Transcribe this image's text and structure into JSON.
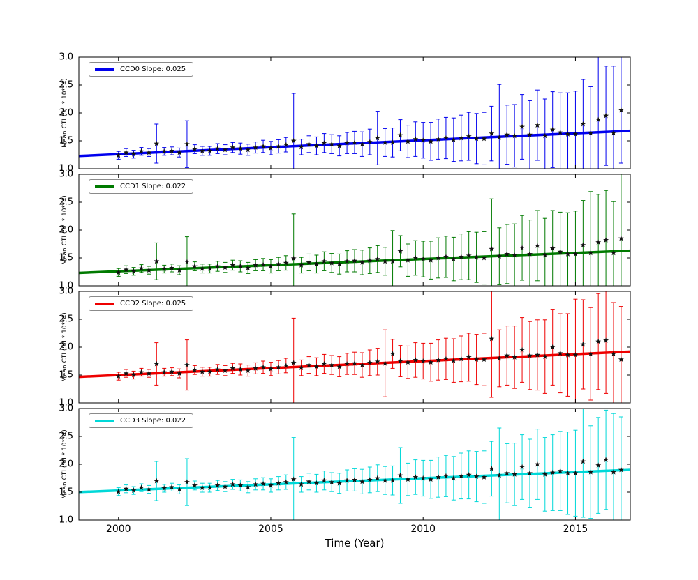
{
  "figure": {
    "xlabel": "Time (Year)",
    "ylabel": "Mean CTI (S/I * 10**4)",
    "x_ticks": [
      2000,
      2005,
      2010,
      2015
    ],
    "y_ticks": [
      3.0,
      2.5,
      2.0,
      1.5,
      1.0
    ],
    "xlim": [
      1998.7,
      2016.8
    ],
    "ylim": [
      1.0,
      3.0
    ],
    "background": "#ffffff"
  },
  "chart_data": {
    "type": "scatter",
    "subtype": "errorbar-with-linear-fit",
    "title": "",
    "xlabel": "Time (Year)",
    "ylabel": "Mean CTI (S/I * 10**4)",
    "xlim": [
      1998.7,
      2016.8
    ],
    "ylim": [
      1.0,
      3.0
    ],
    "legend_position": "upper-left-each-subplot",
    "grid": false,
    "marker": "star-black",
    "x": [
      2000.0,
      2000.25,
      2000.5,
      2000.75,
      2001.0,
      2001.25,
      2001.5,
      2001.75,
      2002.0,
      2002.25,
      2002.5,
      2002.75,
      2003.0,
      2003.25,
      2003.5,
      2003.75,
      2004.0,
      2004.25,
      2004.5,
      2004.75,
      2005.0,
      2005.25,
      2005.5,
      2005.75,
      2006.0,
      2006.25,
      2006.5,
      2006.75,
      2007.0,
      2007.25,
      2007.5,
      2007.75,
      2008.0,
      2008.25,
      2008.5,
      2008.75,
      2009.0,
      2009.25,
      2009.5,
      2009.75,
      2010.0,
      2010.25,
      2010.5,
      2010.75,
      2011.0,
      2011.25,
      2011.5,
      2011.75,
      2012.0,
      2012.25,
      2012.5,
      2012.75,
      2013.0,
      2013.25,
      2013.5,
      2013.75,
      2014.0,
      2014.25,
      2014.5,
      2014.75,
      2015.0,
      2015.25,
      2015.5,
      2015.75,
      2016.0,
      2016.25,
      2016.5
    ],
    "series": [
      {
        "name": "CCD0",
        "legend": "CCD0 Slope: 0.025",
        "color": "#0000ee",
        "slope": 0.025,
        "trend_intercept_2000": 1.26,
        "y": [
          1.24,
          1.29,
          1.26,
          1.31,
          1.29,
          1.45,
          1.31,
          1.32,
          1.29,
          1.44,
          1.35,
          1.32,
          1.32,
          1.36,
          1.34,
          1.38,
          1.36,
          1.34,
          1.38,
          1.4,
          1.37,
          1.4,
          1.43,
          1.5,
          1.39,
          1.44,
          1.41,
          1.46,
          1.44,
          1.41,
          1.46,
          1.47,
          1.44,
          1.48,
          1.55,
          1.47,
          1.47,
          1.6,
          1.49,
          1.53,
          1.51,
          1.49,
          1.53,
          1.55,
          1.52,
          1.55,
          1.58,
          1.54,
          1.54,
          1.63,
          1.56,
          1.61,
          1.59,
          1.75,
          1.61,
          1.78,
          1.59,
          1.7,
          1.65,
          1.62,
          1.62,
          1.8,
          1.64,
          1.88,
          1.95,
          1.64,
          2.05
        ],
        "yerr": [
          0.07,
          0.07,
          0.07,
          0.07,
          0.07,
          0.35,
          0.07,
          0.07,
          0.08,
          0.42,
          0.08,
          0.08,
          0.08,
          0.09,
          0.09,
          0.09,
          0.1,
          0.1,
          0.1,
          0.11,
          0.12,
          0.12,
          0.13,
          0.85,
          0.14,
          0.15,
          0.16,
          0.17,
          0.17,
          0.18,
          0.19,
          0.2,
          0.22,
          0.23,
          0.48,
          0.25,
          0.26,
          0.28,
          0.29,
          0.31,
          0.32,
          0.34,
          0.36,
          0.37,
          0.39,
          0.41,
          0.43,
          0.45,
          0.47,
          0.49,
          0.95,
          0.53,
          0.56,
          0.58,
          0.61,
          0.63,
          0.66,
          0.68,
          0.71,
          0.74,
          0.77,
          0.8,
          0.83,
          1.15,
          0.89,
          1.2,
          0.95
        ]
      },
      {
        "name": "CCD1",
        "legend": "CCD1 Slope: 0.022",
        "color": "#007a00",
        "slope": 0.022,
        "trend_intercept_2000": 1.26,
        "y": [
          1.24,
          1.29,
          1.26,
          1.31,
          1.28,
          1.44,
          1.3,
          1.32,
          1.28,
          1.43,
          1.35,
          1.31,
          1.31,
          1.35,
          1.33,
          1.37,
          1.35,
          1.32,
          1.37,
          1.38,
          1.35,
          1.39,
          1.41,
          1.49,
          1.37,
          1.42,
          1.39,
          1.44,
          1.41,
          1.39,
          1.44,
          1.45,
          1.42,
          1.45,
          1.48,
          1.44,
          1.44,
          1.62,
          1.46,
          1.5,
          1.48,
          1.46,
          1.5,
          1.52,
          1.48,
          1.52,
          1.54,
          1.51,
          1.5,
          1.66,
          1.53,
          1.57,
          1.55,
          1.68,
          1.57,
          1.72,
          1.55,
          1.67,
          1.61,
          1.57,
          1.57,
          1.73,
          1.59,
          1.78,
          1.82,
          1.59,
          1.85
        ],
        "yerr": [
          0.07,
          0.07,
          0.07,
          0.07,
          0.07,
          0.33,
          0.07,
          0.07,
          0.08,
          0.45,
          0.08,
          0.08,
          0.08,
          0.09,
          0.09,
          0.09,
          0.1,
          0.1,
          0.1,
          0.11,
          0.12,
          0.12,
          0.13,
          0.8,
          0.14,
          0.15,
          0.16,
          0.17,
          0.17,
          0.18,
          0.19,
          0.2,
          0.22,
          0.23,
          0.24,
          0.25,
          0.55,
          0.28,
          0.29,
          0.31,
          0.32,
          0.34,
          0.36,
          0.37,
          0.39,
          0.41,
          0.43,
          0.45,
          0.47,
          0.9,
          0.51,
          0.53,
          0.56,
          0.58,
          0.61,
          0.63,
          0.66,
          0.68,
          0.71,
          0.74,
          0.77,
          0.8,
          1.1,
          0.86,
          0.89,
          0.92,
          1.15
        ]
      },
      {
        "name": "CCD2",
        "legend": "CCD2 Slope: 0.025",
        "color": "#ee0000",
        "slope": 0.025,
        "trend_intercept_2000": 1.5,
        "y": [
          1.48,
          1.53,
          1.5,
          1.55,
          1.53,
          1.7,
          1.55,
          1.56,
          1.53,
          1.68,
          1.59,
          1.56,
          1.56,
          1.6,
          1.58,
          1.62,
          1.6,
          1.58,
          1.62,
          1.64,
          1.61,
          1.64,
          1.67,
          1.72,
          1.63,
          1.68,
          1.65,
          1.7,
          1.68,
          1.65,
          1.7,
          1.71,
          1.68,
          1.72,
          1.74,
          1.71,
          1.88,
          1.75,
          1.73,
          1.77,
          1.75,
          1.73,
          1.77,
          1.79,
          1.76,
          1.79,
          1.82,
          1.78,
          1.78,
          2.15,
          1.8,
          1.85,
          1.82,
          1.95,
          1.85,
          1.86,
          1.83,
          2.0,
          1.89,
          1.86,
          1.86,
          2.05,
          1.88,
          2.1,
          2.12,
          1.88,
          1.78
        ],
        "yerr": [
          0.07,
          0.07,
          0.07,
          0.07,
          0.07,
          0.38,
          0.07,
          0.07,
          0.08,
          0.45,
          0.08,
          0.08,
          0.08,
          0.09,
          0.09,
          0.09,
          0.1,
          0.1,
          0.1,
          0.11,
          0.12,
          0.12,
          0.13,
          0.8,
          0.14,
          0.15,
          0.16,
          0.17,
          0.17,
          0.18,
          0.19,
          0.2,
          0.22,
          0.23,
          0.24,
          0.6,
          0.26,
          0.28,
          0.29,
          0.31,
          0.32,
          0.34,
          0.36,
          0.37,
          0.39,
          0.41,
          0.43,
          0.45,
          0.47,
          1.05,
          0.51,
          0.53,
          0.56,
          0.58,
          0.61,
          0.63,
          0.66,
          0.68,
          0.71,
          0.74,
          1.0,
          0.8,
          0.83,
          0.86,
          0.95,
          0.92,
          0.95
        ]
      },
      {
        "name": "CCD3",
        "legend": "CCD3 Slope: 0.022",
        "color": "#00d8d8",
        "slope": 0.022,
        "trend_intercept_2000": 1.53,
        "y": [
          1.51,
          1.56,
          1.53,
          1.58,
          1.55,
          1.7,
          1.57,
          1.59,
          1.55,
          1.68,
          1.62,
          1.58,
          1.58,
          1.62,
          1.6,
          1.64,
          1.62,
          1.59,
          1.64,
          1.65,
          1.62,
          1.66,
          1.68,
          1.73,
          1.64,
          1.69,
          1.66,
          1.71,
          1.68,
          1.66,
          1.71,
          1.72,
          1.69,
          1.72,
          1.75,
          1.71,
          1.71,
          1.8,
          1.73,
          1.77,
          1.75,
          1.73,
          1.77,
          1.79,
          1.75,
          1.79,
          1.81,
          1.78,
          1.77,
          1.92,
          1.8,
          1.84,
          1.82,
          1.95,
          1.84,
          2.0,
          1.82,
          1.85,
          1.88,
          1.84,
          1.84,
          2.05,
          1.86,
          1.98,
          2.08,
          1.86,
          1.9
        ],
        "yerr": [
          0.07,
          0.07,
          0.07,
          0.07,
          0.07,
          0.35,
          0.07,
          0.07,
          0.08,
          0.42,
          0.08,
          0.08,
          0.08,
          0.09,
          0.09,
          0.09,
          0.1,
          0.1,
          0.1,
          0.11,
          0.12,
          0.12,
          0.13,
          0.75,
          0.14,
          0.15,
          0.16,
          0.17,
          0.17,
          0.18,
          0.19,
          0.2,
          0.22,
          0.23,
          0.24,
          0.25,
          0.26,
          0.5,
          0.29,
          0.31,
          0.32,
          0.34,
          0.36,
          0.37,
          0.39,
          0.41,
          0.43,
          0.45,
          0.47,
          0.49,
          0.85,
          0.53,
          0.56,
          0.58,
          0.61,
          0.63,
          0.66,
          0.68,
          0.71,
          0.74,
          0.77,
          1.0,
          0.83,
          0.86,
          0.89,
          1.05,
          0.95
        ]
      }
    ]
  }
}
